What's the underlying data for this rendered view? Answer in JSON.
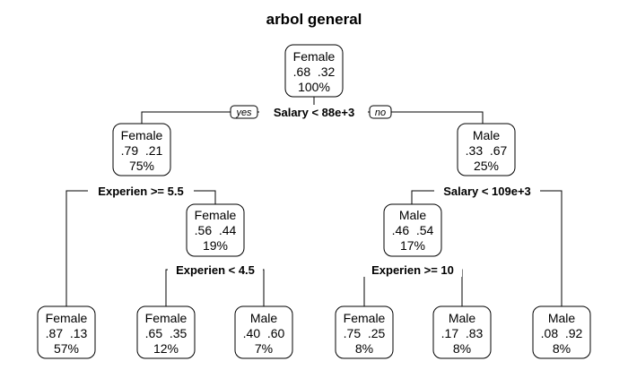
{
  "title": "arbol general",
  "branch_labels": {
    "yes": "yes",
    "no": "no"
  },
  "nodes": {
    "root": {
      "class": "Female",
      "probs": ".68  .32",
      "percent": "100%"
    },
    "n2": {
      "class": "Female",
      "probs": ".79  .21",
      "percent": "75%"
    },
    "n3": {
      "class": "Male",
      "probs": ".33  .67",
      "percent": "25%"
    },
    "n5": {
      "class": "Female",
      "probs": ".56  .44",
      "percent": "19%"
    },
    "n6": {
      "class": "Male",
      "probs": ".46  .54",
      "percent": "17%"
    },
    "l4": {
      "class": "Female",
      "probs": ".87  .13",
      "percent": "57%"
    },
    "l10": {
      "class": "Female",
      "probs": ".65  .35",
      "percent": "12%"
    },
    "l11": {
      "class": "Male",
      "probs": ".40  .60",
      "percent": "7%"
    },
    "l12": {
      "class": "Female",
      "probs": ".75  .25",
      "percent": "8%"
    },
    "l13": {
      "class": "Male",
      "probs": ".17  .83",
      "percent": "8%"
    },
    "l7": {
      "class": "Male",
      "probs": ".08  .92",
      "percent": "8%"
    }
  },
  "splits": {
    "root": "Salary < 88e+3",
    "n2": "Experien >= 5.5",
    "n3": "Salary < 109e+3",
    "n5": "Experien < 4.5",
    "n6": "Experien >= 10"
  }
}
